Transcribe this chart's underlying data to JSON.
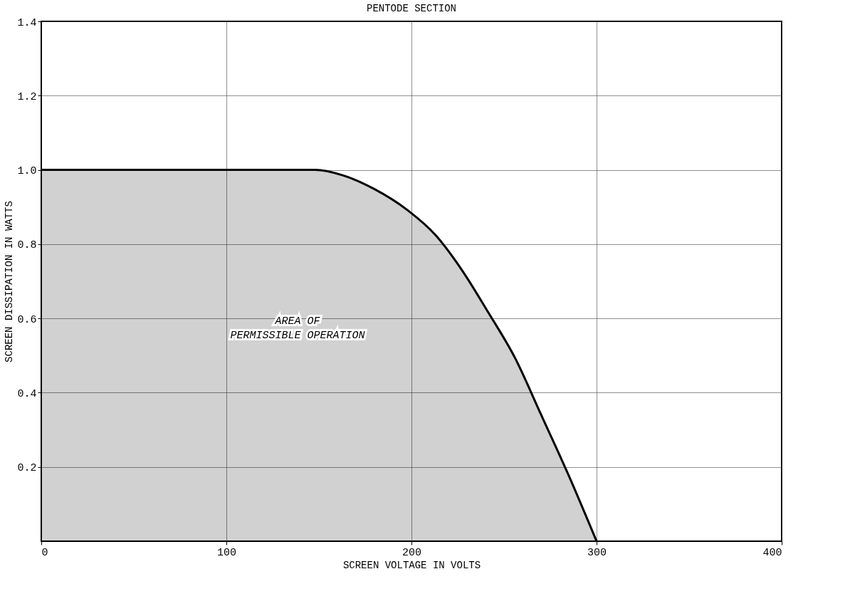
{
  "chart_data": {
    "type": "area",
    "title": "PENTODE SECTION",
    "xlabel": "SCREEN VOLTAGE IN VOLTS",
    "ylabel": "SCREEN DISSIPATION IN WATTS",
    "x": [
      0,
      148,
      162.5,
      179.7,
      198,
      212.7,
      227,
      241.5,
      256,
      270,
      284.6,
      300
    ],
    "series": [
      {
        "color": "#000000",
        "values": [
          1.0,
          1.0,
          0.986,
          0.949,
          0.891,
          0.826,
          0.732,
          0.616,
          0.493,
          0.341,
          0.181,
          0
        ]
      }
    ],
    "xlim": [
      0,
      400
    ],
    "xticks": [
      0,
      100,
      200,
      300,
      400
    ],
    "ylim": [
      0,
      1.4
    ],
    "yticks": [
      0.2,
      0.4,
      0.6,
      0.8,
      {
        "value": 1,
        "label": "1.0"
      },
      1.2,
      1.4
    ],
    "grid": true,
    "annotations": [
      "AREA OF\nPERMISSIBLE OPERATION"
    ]
  }
}
